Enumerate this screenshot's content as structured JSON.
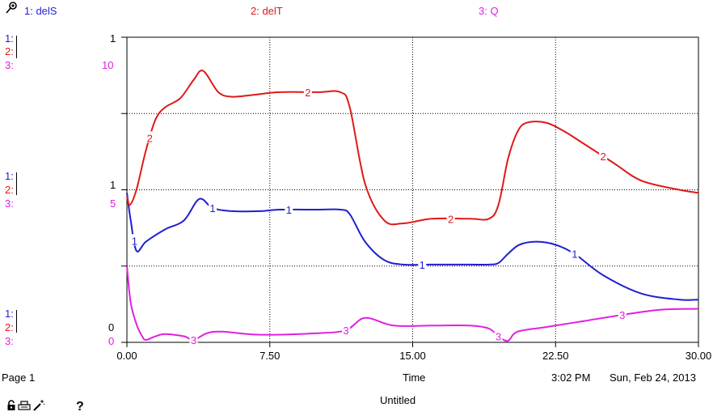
{
  "legend": {
    "s1": "1: delS",
    "s2": "2: delT",
    "s3": "3: Q"
  },
  "scales": {
    "top": {
      "s1": "1:",
      "s2": "2:",
      "s3": "3:",
      "s1_val": "1",
      "s3_val": "10"
    },
    "mid": {
      "s1": "1:",
      "s2": "2:",
      "s3": "3:",
      "s1_val": "1",
      "s3_val": "5"
    },
    "bottom": {
      "s1": "1:",
      "s2": "2:",
      "s3": "3:",
      "s1_val": "0",
      "s3_val": "0"
    }
  },
  "footer": {
    "page": "Page 1",
    "xlabel": "Time",
    "time": "3:02 PM",
    "date": "Sun, Feb 24, 2013",
    "title": "Untitled",
    "help": "?"
  },
  "colors": {
    "s1": "#1f1fd0",
    "s2": "#e01818",
    "s3": "#e020e0"
  },
  "icons": {
    "pin": "pushpin-icon",
    "lock": "lock-icon",
    "print": "print-icon",
    "wand": "wand-icon"
  },
  "chart_data": {
    "type": "line",
    "xlim": [
      0,
      30
    ],
    "x_ticks": [
      "0.00",
      "7.50",
      "15.00",
      "22.50",
      "30.00"
    ],
    "x_tick_values": [
      0,
      7.5,
      15,
      22.5,
      30
    ],
    "xlabel": "Time",
    "grid": true,
    "ylim_normalized": [
      0,
      1
    ],
    "series": [
      {
        "name": "delS",
        "key": "s1",
        "marker": "1",
        "x": [
          0,
          0.2,
          0.5,
          1,
          2,
          3,
          3.8,
          4.5,
          5.5,
          7,
          8,
          10,
          11.2,
          11.7,
          12.5,
          13.5,
          14.5,
          16,
          18,
          19,
          19.5,
          20,
          20.6,
          21.5,
          22.5,
          23.5,
          25,
          27,
          29,
          30
        ],
        "y": [
          0.49,
          0.4,
          0.3,
          0.33,
          0.37,
          0.4,
          0.47,
          0.44,
          0.43,
          0.43,
          0.435,
          0.435,
          0.435,
          0.42,
          0.33,
          0.27,
          0.255,
          0.255,
          0.255,
          0.255,
          0.26,
          0.29,
          0.32,
          0.33,
          0.32,
          0.29,
          0.22,
          0.16,
          0.14,
          0.14
        ],
        "marker_x": [
          0.4,
          4.5,
          8.5,
          15.5,
          23.5
        ]
      },
      {
        "name": "delT",
        "key": "s2",
        "marker": "2",
        "x": [
          0,
          0.15,
          0.5,
          1,
          1.5,
          2,
          2.8,
          3.5,
          4,
          4.8,
          5.5,
          6.5,
          8,
          10,
          11.2,
          11.7,
          12.5,
          13.5,
          14.5,
          16,
          18,
          19,
          19.5,
          20,
          20.5,
          21,
          22,
          23,
          24,
          25.5,
          27,
          29,
          30
        ],
        "y": [
          0.48,
          0.45,
          0.5,
          0.63,
          0.73,
          0.77,
          0.8,
          0.86,
          0.89,
          0.82,
          0.805,
          0.81,
          0.82,
          0.82,
          0.82,
          0.77,
          0.52,
          0.4,
          0.39,
          0.405,
          0.405,
          0.405,
          0.45,
          0.6,
          0.69,
          0.72,
          0.72,
          0.69,
          0.65,
          0.59,
          0.53,
          0.5,
          0.49
        ],
        "marker_x": [
          1.2,
          9.5,
          17.0,
          25.0
        ]
      },
      {
        "name": "Q",
        "key": "s3",
        "marker": "3",
        "x": [
          0,
          0.2,
          0.5,
          0.8,
          1.0,
          1.5,
          2,
          3,
          3.5,
          4.2,
          5,
          7,
          10,
          11.5,
          12.5,
          14,
          16,
          18,
          19,
          19.5,
          20,
          20.5,
          22,
          24,
          26,
          28,
          30
        ],
        "y": [
          0.25,
          0.13,
          0.06,
          0.02,
          0.008,
          0.02,
          0.027,
          0.02,
          0.008,
          0.03,
          0.035,
          0.025,
          0.03,
          0.04,
          0.08,
          0.055,
          0.055,
          0.055,
          0.045,
          0.02,
          0.005,
          0.035,
          0.05,
          0.07,
          0.09,
          0.107,
          0.11
        ],
        "marker_x": [
          3.5,
          11.5,
          19.5,
          26.0
        ]
      }
    ]
  }
}
